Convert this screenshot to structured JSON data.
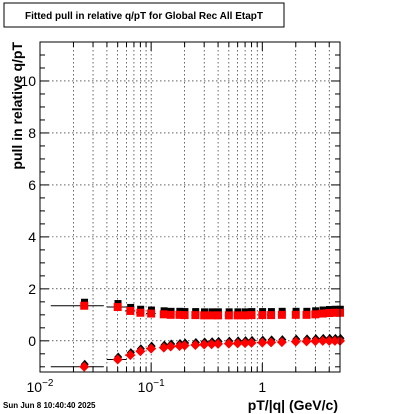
{
  "chart_data": {
    "type": "scatter",
    "title": "Fitted pull in relative q/pT for Global Rec All EtapT",
    "xlabel": "pT/|q| (GeV/c)",
    "ylabel": "pull in relative q/pT",
    "xscale": "log",
    "xlim": [
      0.01,
      5.0
    ],
    "ylim": [
      -1.2,
      11.5
    ],
    "grid": true,
    "x_tick_labels": [
      {
        "v": 0.01,
        "base": "10",
        "exp": "−2"
      },
      {
        "v": 0.1,
        "base": "10",
        "exp": "−1"
      },
      {
        "v": 1,
        "base": "1",
        "exp": ""
      }
    ],
    "y_tick_labels": [
      "0",
      "2",
      "4",
      "6",
      "8",
      "10"
    ],
    "series": [
      {
        "marker": "square",
        "colors": {
          "fill": "#ff0000",
          "overlay": "#000000"
        },
        "x": [
          0.025,
          0.05,
          0.065,
          0.08,
          0.1,
          0.13,
          0.15,
          0.18,
          0.2,
          0.25,
          0.3,
          0.35,
          0.4,
          0.5,
          0.6,
          0.7,
          0.8,
          1.0,
          1.2,
          1.5,
          2.0,
          2.5,
          3.0,
          3.5,
          4.0,
          4.5,
          5.0
        ],
        "y": [
          1.35,
          1.3,
          1.15,
          1.08,
          1.05,
          1.02,
          1.0,
          1.0,
          0.99,
          0.99,
          0.98,
          0.98,
          0.98,
          0.98,
          0.98,
          0.98,
          0.99,
          0.99,
          0.99,
          1.0,
          1.0,
          1.0,
          1.02,
          1.05,
          1.07,
          1.08,
          1.08
        ],
        "xerr": [
          0.0125,
          0.01,
          0.007,
          0.007,
          0.01,
          0.01,
          0.01,
          0.015,
          0.015,
          0.02,
          0.02,
          0.025,
          0.03,
          0.04,
          0.04,
          0.05,
          0.06,
          0.08,
          0.1,
          0.12,
          0.15,
          0.2,
          0.2,
          0.25,
          0.25,
          0.25,
          0.25
        ]
      },
      {
        "marker": "diamond",
        "colors": {
          "fill": "#ff0000",
          "overlay": "#000000"
        },
        "x": [
          0.025,
          0.05,
          0.065,
          0.08,
          0.1,
          0.13,
          0.15,
          0.18,
          0.2,
          0.25,
          0.3,
          0.35,
          0.4,
          0.5,
          0.6,
          0.7,
          0.8,
          1.0,
          1.2,
          1.5,
          2.0,
          2.5,
          3.0,
          3.5,
          4.0,
          4.5,
          5.0
        ],
        "y": [
          -1.0,
          -0.72,
          -0.55,
          -0.4,
          -0.3,
          -0.26,
          -0.22,
          -0.2,
          -0.18,
          -0.16,
          -0.14,
          -0.13,
          -0.12,
          -0.11,
          -0.1,
          -0.09,
          -0.08,
          -0.07,
          -0.06,
          -0.05,
          -0.03,
          -0.02,
          -0.01,
          0.0,
          0.0,
          0.0,
          0.0
        ],
        "xerr": [
          0.0125,
          0.01,
          0.007,
          0.007,
          0.01,
          0.01,
          0.01,
          0.015,
          0.015,
          0.02,
          0.02,
          0.025,
          0.03,
          0.04,
          0.04,
          0.05,
          0.06,
          0.08,
          0.1,
          0.12,
          0.15,
          0.2,
          0.2,
          0.25,
          0.25,
          0.25,
          0.25
        ]
      }
    ]
  },
  "footer": {
    "timestamp": "Sun Jun  8 10:40:40 2025"
  }
}
